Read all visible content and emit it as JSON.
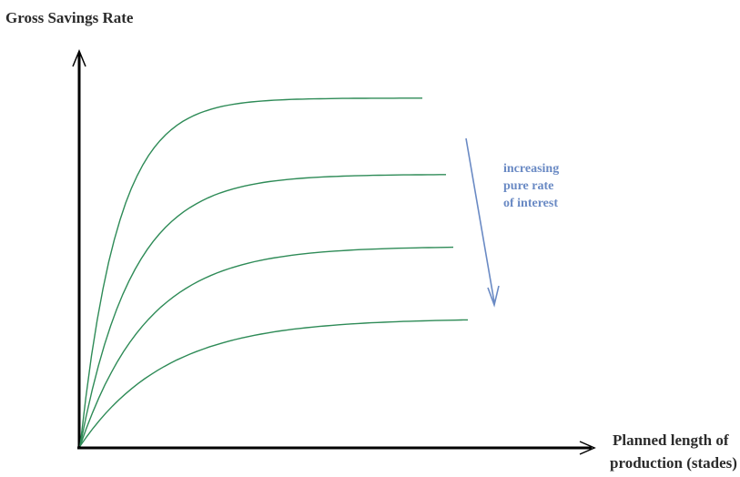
{
  "chart_data": {
    "type": "line",
    "title": "",
    "ylabel": "Gross Savings Rate",
    "xlabel_lines": [
      "Planned length of",
      "production (stades)"
    ],
    "annotation_lines": [
      "increasing",
      "pure rate",
      "of interest"
    ],
    "annotation_arrow": "down",
    "series": [
      {
        "values": [
          0,
          0.8,
          0.87,
          0.9,
          0.91
        ]
      },
      {
        "values": [
          0,
          0.58,
          0.67,
          0.7,
          0.71
        ]
      },
      {
        "values": [
          0,
          0.4,
          0.48,
          0.51,
          0.52
        ]
      },
      {
        "values": [
          0,
          0.23,
          0.3,
          0.32,
          0.33
        ]
      }
    ],
    "x": [
      0,
      0.25,
      0.5,
      0.75,
      1.0
    ],
    "axis_ticks": "none",
    "grid": false,
    "legend": "none"
  },
  "colors": {
    "curves": "#2e8b57",
    "axes": "#000000",
    "annotation": "#6a8ac4"
  }
}
